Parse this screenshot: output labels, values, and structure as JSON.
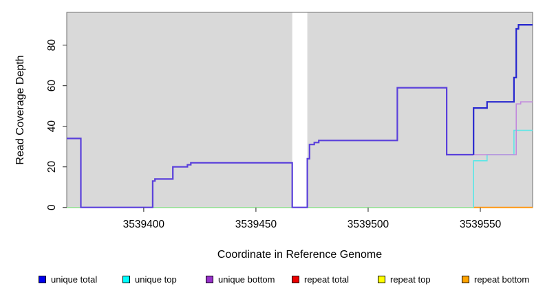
{
  "chart_data": {
    "type": "line",
    "subtype": "step-coverage-plot",
    "title": "",
    "xlabel": "Coordinate in Reference Genome",
    "ylabel": "Read Coverage Depth",
    "x_ticks": [
      3539400,
      3539450,
      3539500,
      3539550
    ],
    "y_ticks": [
      0,
      20,
      40,
      60,
      80
    ],
    "x_range": [
      3539365.7,
      3539573.3
    ],
    "y_range": [
      0,
      96.2
    ],
    "grid": false,
    "panel_bg": "#d9d9d9",
    "border_color": "#6e6e6e",
    "tick_color": "#444444",
    "masked_region": {
      "x0": 3539466.2,
      "x1": 3539472.9,
      "color": "#ffffff"
    },
    "note": "unique total and unique bottom coincide left of 3539547 (violet blend); repeat series lie on the zero baseline",
    "series": [
      {
        "name": "baseline-zero (unique top / repeat series at 0)",
        "color": "#94e294",
        "width": 1.3,
        "points": [
          [
            3539365.7,
            0
          ],
          [
            3539573.3,
            0
          ]
        ]
      },
      {
        "name": "repeat bottom (zero line, right section)",
        "color": "#ff9714",
        "width": 2,
        "points": [
          [
            3539547,
            0
          ],
          [
            3539573.3,
            0
          ]
        ]
      },
      {
        "name": "unique top",
        "color": "#5ce6e6",
        "width": 1.6,
        "points": [
          [
            3539547,
            0
          ],
          [
            3539547,
            23
          ],
          [
            3539553,
            23
          ],
          [
            3539553,
            26
          ],
          [
            3539565,
            26
          ],
          [
            3539565,
            38
          ],
          [
            3539573.3,
            38
          ]
        ]
      },
      {
        "name": "unique total + unique bottom (overlapping, left)",
        "color": "#5a40db",
        "width": 2.2,
        "points": [
          [
            3539365.7,
            34
          ],
          [
            3539372,
            34
          ],
          [
            3539372,
            0
          ],
          [
            3539404,
            0
          ],
          [
            3539404,
            13
          ],
          [
            3539405,
            13
          ],
          [
            3539405,
            14
          ],
          [
            3539413,
            14
          ],
          [
            3539413,
            20
          ],
          [
            3539419.5,
            20
          ],
          [
            3539419.5,
            21
          ],
          [
            3539421,
            21
          ],
          [
            3539421,
            22
          ],
          [
            3539466.2,
            22
          ],
          [
            3539466.2,
            0
          ],
          [
            3539472.9,
            0
          ],
          [
            3539472.9,
            24
          ],
          [
            3539473.9,
            24
          ],
          [
            3539473.9,
            31
          ],
          [
            3539476,
            31
          ],
          [
            3539476,
            32
          ],
          [
            3539478,
            32
          ],
          [
            3539478,
            33
          ],
          [
            3539513,
            33
          ],
          [
            3539513,
            59
          ],
          [
            3539535,
            59
          ],
          [
            3539535,
            26
          ],
          [
            3539547,
            26
          ]
        ]
      },
      {
        "name": "unique bottom (right)",
        "color": "#c289dd",
        "width": 1.6,
        "points": [
          [
            3539547,
            26
          ],
          [
            3539566,
            26
          ],
          [
            3539566,
            51
          ],
          [
            3539568,
            51
          ],
          [
            3539568,
            52
          ],
          [
            3539573.3,
            52
          ]
        ]
      },
      {
        "name": "unique total (right)",
        "color": "#2727cf",
        "width": 2.2,
        "points": [
          [
            3539547,
            26
          ],
          [
            3539547,
            49
          ],
          [
            3539553,
            49
          ],
          [
            3539553,
            52
          ],
          [
            3539565,
            52
          ],
          [
            3539565,
            64
          ],
          [
            3539566,
            64
          ],
          [
            3539566,
            88
          ],
          [
            3539567,
            88
          ],
          [
            3539567,
            90
          ],
          [
            3539573.3,
            90
          ]
        ]
      }
    ],
    "legend": {
      "position": "bottom",
      "items": [
        {
          "label": "unique total",
          "color": "#0000ee"
        },
        {
          "label": "unique top",
          "color": "#00ffff"
        },
        {
          "label": "unique bottom",
          "color": "#9932cc"
        },
        {
          "label": "repeat total",
          "color": "#ee0000"
        },
        {
          "label": "repeat top",
          "color": "#ffff00"
        },
        {
          "label": "repeat bottom",
          "color": "#ffa500"
        }
      ]
    }
  }
}
